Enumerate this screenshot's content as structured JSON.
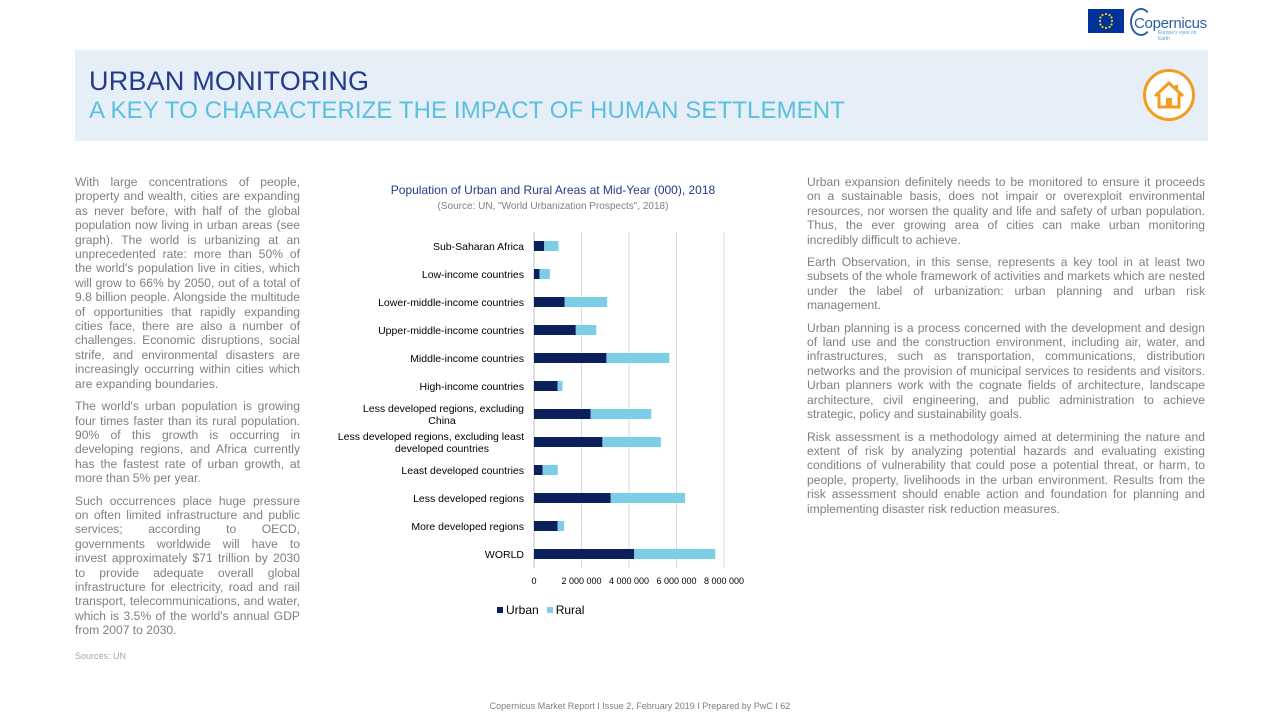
{
  "header": {
    "title": "URBAN MONITORING",
    "subtitle": "A KEY TO CHARACTERIZE THE IMPACT OF HUMAN SETTLEMENT",
    "logo_text": "Copernicus",
    "logo_tagline": "Europe's eyes on Earth",
    "badge_icon": "house-icon"
  },
  "left_column": {
    "paragraphs": [
      "With large concentrations of people, property and wealth, cities are expanding as never before, with half of the global population now living in urban areas (see graph). The world is urbanizing at an unprecedented rate: more than 50% of the world's population live in cities, which will grow to 66%  by 2050, out of a total of 9.8 billion people. Alongside the multitude of opportunities that rapidly expanding cities face, there are also a number of challenges. Economic disruptions, social strife, and environmental disasters are increasingly occurring within cities which are expanding boundaries.",
      "The world's urban population is growing four times faster than its rural population. 90% of this growth is occurring in developing regions, and Africa currently has the fastest rate of urban growth, at more than 5% per year.",
      "Such occurrences place huge pressure on often limited infrastructure and public services; according to OECD, governments worldwide will have to invest approximately $71 trillion by 2030 to provide adequate overall global infrastructure for electricity, road and rail transport, telecommunications, and water, which  is 3.5% of the world's annual GDP from 2007 to 2030."
    ],
    "sources": "Sources: UN"
  },
  "right_column": {
    "paragraphs": [
      "Urban expansion definitely needs to be monitored to ensure it proceeds on a sustainable basis, does not impair or overexploit environmental resources, nor worsen the quality and life and safety of urban population. Thus, the ever growing area of cities can make urban monitoring incredibly difficult to achieve.",
      "Earth Observation, in this sense, represents a key tool  in at least two subsets of the whole framework of activities and markets which are nested under the label of urbanization: urban planning and urban risk management.",
      "Urban planning is a process concerned with the development and design of land use and the construction environment, including air, water, and infrastructures, such as transportation, communications, distribution networks and the provision of municipal services to residents and visitors. Urban planners work with the cognate fields of architecture, landscape architecture, civil engineering, and public administration to achieve strategic, policy and sustainability goals.",
      "Risk assessment is a methodology aimed at determining the nature and extent of risk by analyzing potential hazards and evaluating existing conditions of vulnerability that could pose a potential threat, or harm, to people, property, livelihoods in the urban environment. Results from the risk assessment should enable action and foundation for planning and implementing disaster risk reduction measures."
    ]
  },
  "footer": {
    "text": "Copernicus Market Report I Issue 2, February 2019 I Prepared by PwC I     62"
  },
  "colors": {
    "urban": "#0b1f5c",
    "rural": "#7ccde6",
    "title_navy": "#243a8c",
    "title_cyan": "#5bc0de",
    "badge_orange": "#f39c1f"
  },
  "chart_data": {
    "type": "bar",
    "orientation": "horizontal",
    "stacked": true,
    "title": "Population of Urban and Rural Areas at Mid-Year (000), 2018",
    "subtitle": "(Source: UN, \"World Urbanization Prospects\", 2018)",
    "categories": [
      "Sub-Saharan Africa",
      "Low-income countries",
      "Lower-middle-income countries",
      "Upper-middle-income countries",
      "Middle-income countries",
      "High-income countries",
      "Less developed regions, excluding China",
      "Less developed regions, excluding least developed countries",
      "Least developed countries",
      "Less developed regions",
      "More developed regions",
      "WORLD"
    ],
    "category_lines": [
      [
        "Sub-Saharan Africa"
      ],
      [
        "Low-income countries"
      ],
      [
        "Lower-middle-income countries"
      ],
      [
        "Upper-middle-income countries"
      ],
      [
        "Middle-income countries"
      ],
      [
        "High-income countries"
      ],
      [
        "Less developed regions, excluding",
        "China"
      ],
      [
        "Less developed regions, excluding least",
        "developed countries"
      ],
      [
        "Least developed countries"
      ],
      [
        "Less developed regions"
      ],
      [
        "More developed regions"
      ],
      [
        "WORLD"
      ]
    ],
    "series": [
      {
        "name": "Urban",
        "values": [
          430000,
          230000,
          1290000,
          1760000,
          3050000,
          990000,
          2380000,
          2880000,
          360000,
          3230000,
          990000,
          4220000
        ]
      },
      {
        "name": "Rural",
        "values": [
          600000,
          440000,
          1790000,
          860000,
          2650000,
          210000,
          2560000,
          2460000,
          640000,
          3130000,
          280000,
          3410000
        ]
      }
    ],
    "xlim": [
      0,
      8000000
    ],
    "xticks": [
      "0",
      "2 000 000",
      "4 000 000",
      "6 000 000",
      "8 000 000"
    ],
    "xtick_values": [
      0,
      2000000,
      4000000,
      6000000,
      8000000
    ],
    "grid": true,
    "legend_position": "bottom"
  }
}
